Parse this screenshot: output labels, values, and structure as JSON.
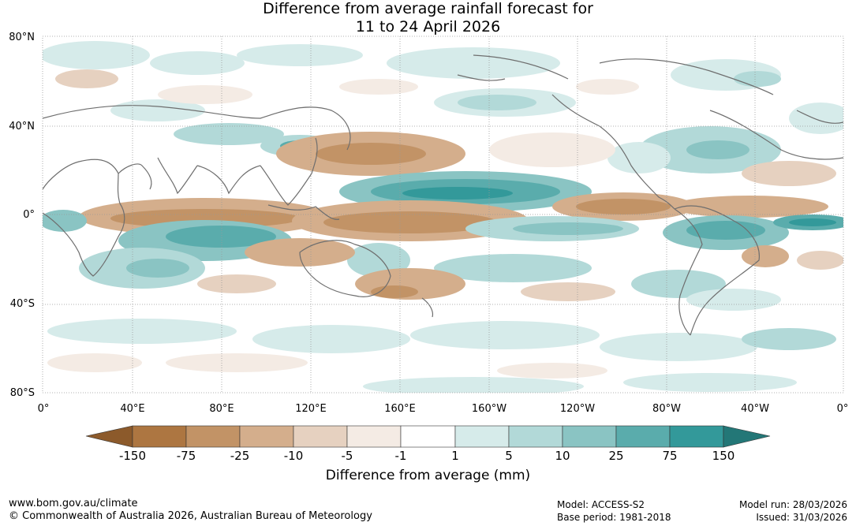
{
  "title": {
    "line1": "Difference from average rainfall forecast for",
    "line2": "11 to 24 April 2026"
  },
  "map": {
    "lat_labels": [
      "80°N",
      "40°N",
      "0°",
      "40°S",
      "80°S"
    ],
    "lon_labels": [
      "0°",
      "40°E",
      "80°E",
      "120°E",
      "160°E",
      "160°W",
      "120°W",
      "80°W",
      "40°W",
      "0°"
    ],
    "colors": {
      "dry_max": "#8c5a2b",
      "dry_150": "#ad7641",
      "dry_75": "#c29366",
      "dry_25": "#d4ae8c",
      "dry_10": "#e6d1c0",
      "dry_5": "#f4ebe4",
      "neutral": "#ffffff",
      "wet_1": "#d6ebea",
      "wet_5": "#b2d9d8",
      "wet_10": "#8ac4c3",
      "wet_25": "#5aacac",
      "wet_75": "#33999a",
      "wet_max": "#237777",
      "coast": "#6e6e6e",
      "grid": "#999999"
    }
  },
  "colorbar": {
    "labels": [
      "-150",
      "-75",
      "-25",
      "-10",
      "-5",
      "-1",
      "1",
      "5",
      "10",
      "25",
      "75",
      "150"
    ],
    "title": "Difference from average (mm)"
  },
  "footer": {
    "url": "www.bom.gov.au/climate",
    "copyright": "© Commonwealth of Australia 2026, Australian Bureau of Meteorology",
    "model": "Model: ACCESS-S2",
    "base_period": "Base period: 1981-2018",
    "model_run": "Model run: 28/03/2026",
    "issued": "Issued: 31/03/2026"
  }
}
